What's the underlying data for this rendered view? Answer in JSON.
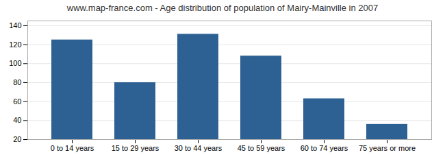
{
  "chart_data": {
    "type": "bar",
    "title": "www.map-france.com - Age distribution of population of Mairy-Mainville in 2007",
    "categories": [
      "0 to 14 years",
      "15 to 29 years",
      "30 to 44 years",
      "45 to 59 years",
      "60 to 74 years",
      "75 years or more"
    ],
    "values": [
      125,
      80,
      131,
      108,
      63,
      36
    ],
    "color": "#2e6193",
    "ylim": [
      20,
      145
    ],
    "yticks": [
      20,
      40,
      60,
      80,
      100,
      120,
      140
    ],
    "grid": true
  }
}
